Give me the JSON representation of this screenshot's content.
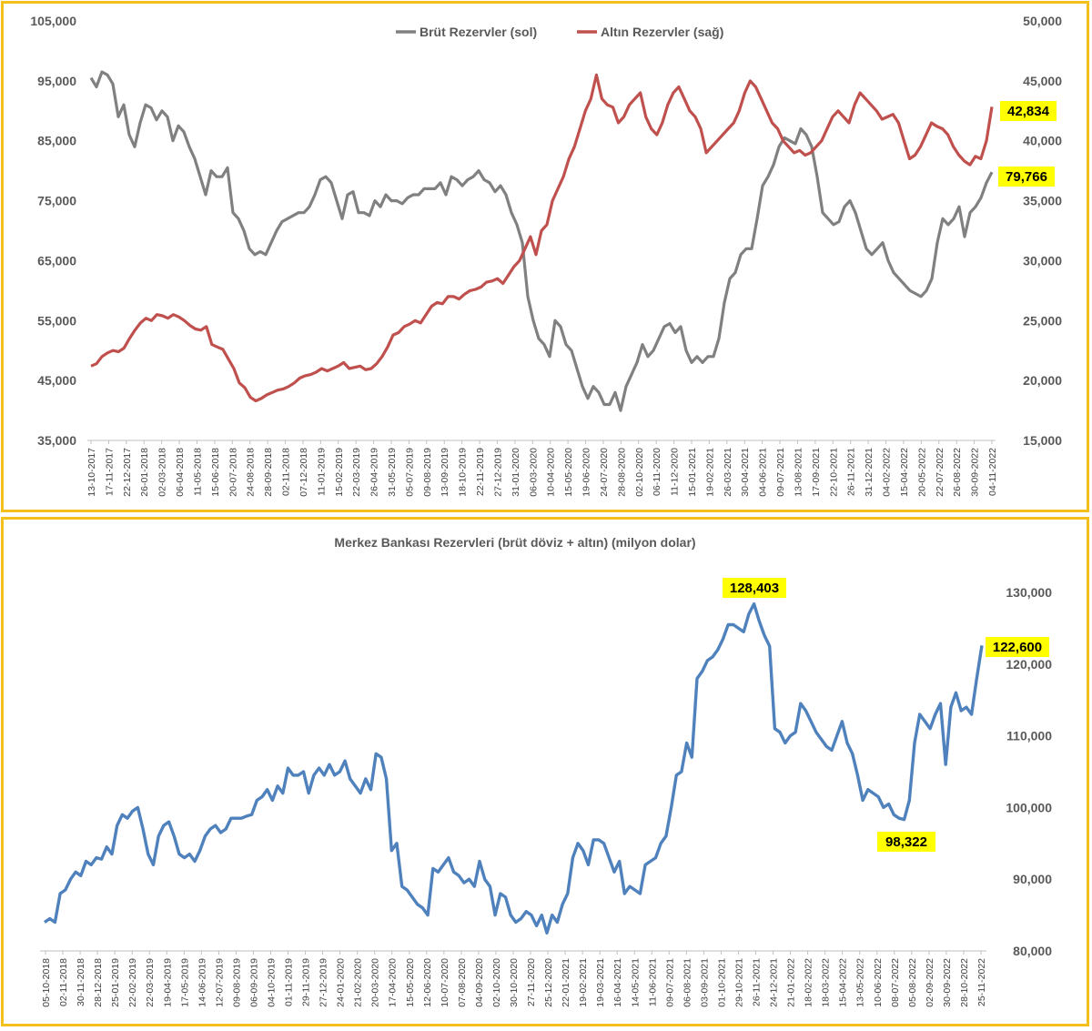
{
  "chart_data": [
    {
      "type": "line",
      "title": "",
      "legend_position": "top-center",
      "grid": false,
      "y_left": {
        "label": "",
        "ylim": [
          35000,
          105000
        ],
        "ticks": [
          "35,000",
          "45,000",
          "55,000",
          "65,000",
          "75,000",
          "85,000",
          "95,000",
          "105,000"
        ]
      },
      "y_right": {
        "label": "",
        "ylim": [
          15000,
          50000
        ],
        "ticks": [
          "15,000",
          "20,000",
          "25,000",
          "30,000",
          "35,000",
          "40,000",
          "45,000",
          "50,000"
        ]
      },
      "x_tick_labels": [
        "13-10-2017",
        "17-11-2017",
        "22-12-2017",
        "26-01-2018",
        "02-03-2018",
        "06-04-2018",
        "11-05-2018",
        "15-06-2018",
        "20-07-2018",
        "24-08-2018",
        "28-09-2018",
        "02-11-2018",
        "07-12-2018",
        "11-01-2019",
        "15-02-2019",
        "22-03-2019",
        "26-04-2019",
        "31-05-2019",
        "05-07-2019",
        "09-08-2019",
        "13-09-2019",
        "18-10-2019",
        "22-11-2019",
        "27-12-2019",
        "31-01-2020",
        "06-03-2020",
        "10-04-2020",
        "15-05-2020",
        "19-06-2020",
        "24-07-2020",
        "28-08-2020",
        "02-10-2020",
        "06-11-2020",
        "11-12-2020",
        "15-01-2021",
        "19-02-2021",
        "26-03-2021",
        "30-04-2021",
        "04-06-2021",
        "09-07-2021",
        "13-08-2021",
        "17-09-2021",
        "22-10-2021",
        "26-11-2021",
        "31-12-2021",
        "04-02-2022",
        "15-04-2022",
        "20-05-2022",
        "22-07-2022",
        "26-08-2022",
        "30-09-2022",
        "04-11-2022"
      ],
      "series": [
        {
          "name": "Brüt Rezervler (sol)",
          "axis": "left",
          "color": "#808080",
          "values": [
            95500,
            94000,
            96500,
            96000,
            94500,
            89000,
            91000,
            86000,
            84000,
            88000,
            91000,
            90500,
            88500,
            90000,
            89000,
            85000,
            87500,
            86500,
            84000,
            82000,
            79000,
            76000,
            80000,
            79000,
            79000,
            80500,
            73000,
            72000,
            70000,
            67000,
            66000,
            66500,
            66000,
            68000,
            70000,
            71500,
            72000,
            72500,
            73000,
            73000,
            74000,
            76000,
            78500,
            79000,
            78000,
            75000,
            72000,
            76000,
            76500,
            73000,
            73000,
            72500,
            75000,
            74000,
            76000,
            75000,
            75000,
            74500,
            75500,
            76000,
            76000,
            77000,
            77000,
            77000,
            78000,
            76000,
            79000,
            78500,
            77500,
            78500,
            79000,
            80000,
            78500,
            78000,
            76500,
            77500,
            76000,
            73000,
            71000,
            68000,
            59000,
            55000,
            52000,
            51000,
            49000,
            55000,
            54000,
            51000,
            50000,
            47000,
            44000,
            42000,
            44000,
            43000,
            41000,
            41000,
            43000,
            40000,
            44000,
            46000,
            48000,
            51000,
            49000,
            50000,
            52000,
            54000,
            54500,
            53000,
            54000,
            50000,
            48000,
            49000,
            48000,
            49000,
            49000,
            52000,
            58000,
            62000,
            63000,
            66000,
            67000,
            67000,
            72000,
            77500,
            79000,
            81000,
            84000,
            85500,
            85000,
            84500,
            87000,
            86000,
            84000,
            79000,
            73000,
            72000,
            71000,
            71500,
            74000,
            75000,
            73000,
            70000,
            67000,
            66000,
            67000,
            68000,
            65000,
            63000,
            62000,
            61000,
            60000,
            59500,
            59000,
            60000,
            62000,
            68000,
            72000,
            71000,
            72000,
            74000,
            69000,
            73000,
            74000,
            75500,
            78000,
            79766
          ]
        },
        {
          "name": "Altın Rezervler (sağ)",
          "axis": "right",
          "color": "#c0504d",
          "values": [
            21200,
            21400,
            22000,
            22300,
            22500,
            22400,
            22700,
            23500,
            24200,
            24800,
            25200,
            25000,
            25500,
            25400,
            25200,
            25500,
            25300,
            25000,
            24600,
            24300,
            24200,
            24500,
            23000,
            22800,
            22600,
            21800,
            21000,
            19800,
            19400,
            18600,
            18300,
            18500,
            18800,
            19000,
            19200,
            19300,
            19500,
            19800,
            20200,
            20400,
            20500,
            20700,
            21000,
            20800,
            21000,
            21200,
            21500,
            21000,
            21100,
            21200,
            20900,
            21000,
            21400,
            22000,
            22800,
            23800,
            24000,
            24500,
            24700,
            25000,
            24800,
            25500,
            26200,
            26500,
            26400,
            27000,
            27000,
            26800,
            27200,
            27500,
            27600,
            27800,
            28200,
            28300,
            28500,
            28100,
            28800,
            29500,
            30000,
            31000,
            32000,
            30500,
            32500,
            33000,
            35000,
            36000,
            37000,
            38500,
            39500,
            41000,
            42500,
            43500,
            45500,
            43500,
            43000,
            42800,
            41500,
            42000,
            43000,
            43500,
            44000,
            42000,
            41000,
            40500,
            41500,
            43000,
            44000,
            44500,
            43500,
            42500,
            42000,
            41000,
            39000,
            39500,
            40000,
            40500,
            41000,
            41500,
            42500,
            44000,
            45000,
            44500,
            43500,
            42500,
            41500,
            41000,
            40000,
            39500,
            39000,
            39200,
            38800,
            39000,
            39500,
            40000,
            41000,
            42000,
            42500,
            42000,
            41500,
            43000,
            44000,
            43500,
            43000,
            42500,
            41800,
            42000,
            42200,
            41500,
            40000,
            38500,
            38800,
            39500,
            40500,
            41500,
            41200,
            41000,
            40500,
            39500,
            38800,
            38300,
            38000,
            38700,
            38500,
            40000,
            42834
          ]
        }
      ],
      "annotations": [
        "42,834",
        "79,766"
      ]
    },
    {
      "type": "line",
      "title": "Merkez Bankası Rezervleri (brüt döviz + altın) (milyon dolar)",
      "grid": false,
      "ylim": [
        80000,
        130000
      ],
      "y_ticks": [
        "80,000",
        "90,000",
        "100,000",
        "110,000",
        "120,000",
        "130,000"
      ],
      "x_tick_labels": [
        "05-10-2018",
        "02-11-2018",
        "30-11-2018",
        "28-12-2018",
        "25-01-2019",
        "22-02-2019",
        "22-03-2019",
        "19-04-2019",
        "17-05-2019",
        "14-06-2019",
        "12-07-2019",
        "09-08-2019",
        "06-09-2019",
        "04-10-2019",
        "01-11-2019",
        "29-11-2019",
        "27-12-2019",
        "24-01-2020",
        "21-02-2020",
        "20-03-2020",
        "17-04-2020",
        "15-05-2020",
        "12-06-2020",
        "10-07-2020",
        "07-08-2020",
        "04-09-2020",
        "02-10-2020",
        "30-10-2020",
        "27-11-2020",
        "25-12-2020",
        "22-01-2021",
        "19-02-2021",
        "19-03-2021",
        "16-04-2021",
        "14-05-2021",
        "11-06-2021",
        "09-07-2021",
        "06-08-2021",
        "03-09-2021",
        "01-10-2021",
        "29-10-2021",
        "26-11-2021",
        "24-12-2021",
        "21-01-2022",
        "18-02-2022",
        "18-03-2022",
        "15-04-2022",
        "13-05-2022",
        "10-06-2022",
        "08-07-2022",
        "05-08-2022",
        "02-09-2022",
        "30-09-2022",
        "28-10-2022",
        "25-11-2022"
      ],
      "series": [
        {
          "name": "",
          "color": "#4f81bd",
          "values": [
            84000,
            84500,
            84000,
            88000,
            88500,
            90000,
            91000,
            90500,
            92500,
            92000,
            93000,
            92800,
            94500,
            93500,
            97500,
            99000,
            98500,
            99500,
            100000,
            97000,
            93500,
            92000,
            96000,
            97500,
            98000,
            96000,
            93500,
            93000,
            93500,
            92500,
            94000,
            96000,
            97000,
            97500,
            96500,
            97000,
            98500,
            98500,
            98500,
            98800,
            99000,
            101000,
            101500,
            102500,
            101000,
            103000,
            102000,
            105500,
            104500,
            104500,
            105000,
            102000,
            104500,
            105500,
            104500,
            106000,
            104500,
            105000,
            106500,
            104000,
            103000,
            102000,
            104000,
            102500,
            107500,
            107000,
            104000,
            94000,
            95000,
            89000,
            88500,
            87500,
            86500,
            86000,
            85000,
            91500,
            91000,
            92000,
            93000,
            91000,
            90500,
            89500,
            90000,
            89000,
            92500,
            90000,
            89000,
            85000,
            88000,
            87500,
            85000,
            84000,
            84500,
            85500,
            85000,
            83500,
            85000,
            82500,
            85000,
            84000,
            86500,
            88000,
            93000,
            95000,
            94000,
            92000,
            95500,
            95500,
            95000,
            93000,
            91000,
            92500,
            88000,
            89000,
            88500,
            88000,
            92000,
            92500,
            93000,
            95000,
            96000,
            100000,
            104500,
            105000,
            109000,
            107000,
            118000,
            119000,
            120500,
            121000,
            122000,
            123500,
            125500,
            125500,
            125000,
            124500,
            127000,
            128403,
            126000,
            124000,
            122500,
            111000,
            110500,
            109000,
            110000,
            110500,
            114500,
            113500,
            112000,
            110500,
            109500,
            108500,
            108000,
            110000,
            112000,
            109000,
            107500,
            104500,
            101000,
            102500,
            102000,
            101500,
            100000,
            100500,
            99000,
            98500,
            98322,
            101000,
            109000,
            113000,
            112000,
            111000,
            113000,
            114500,
            106000,
            114000,
            116000,
            113500,
            114000,
            113000,
            118000,
            122600
          ]
        }
      ],
      "annotations": [
        "128,403",
        "122,600",
        "98,322"
      ]
    }
  ]
}
